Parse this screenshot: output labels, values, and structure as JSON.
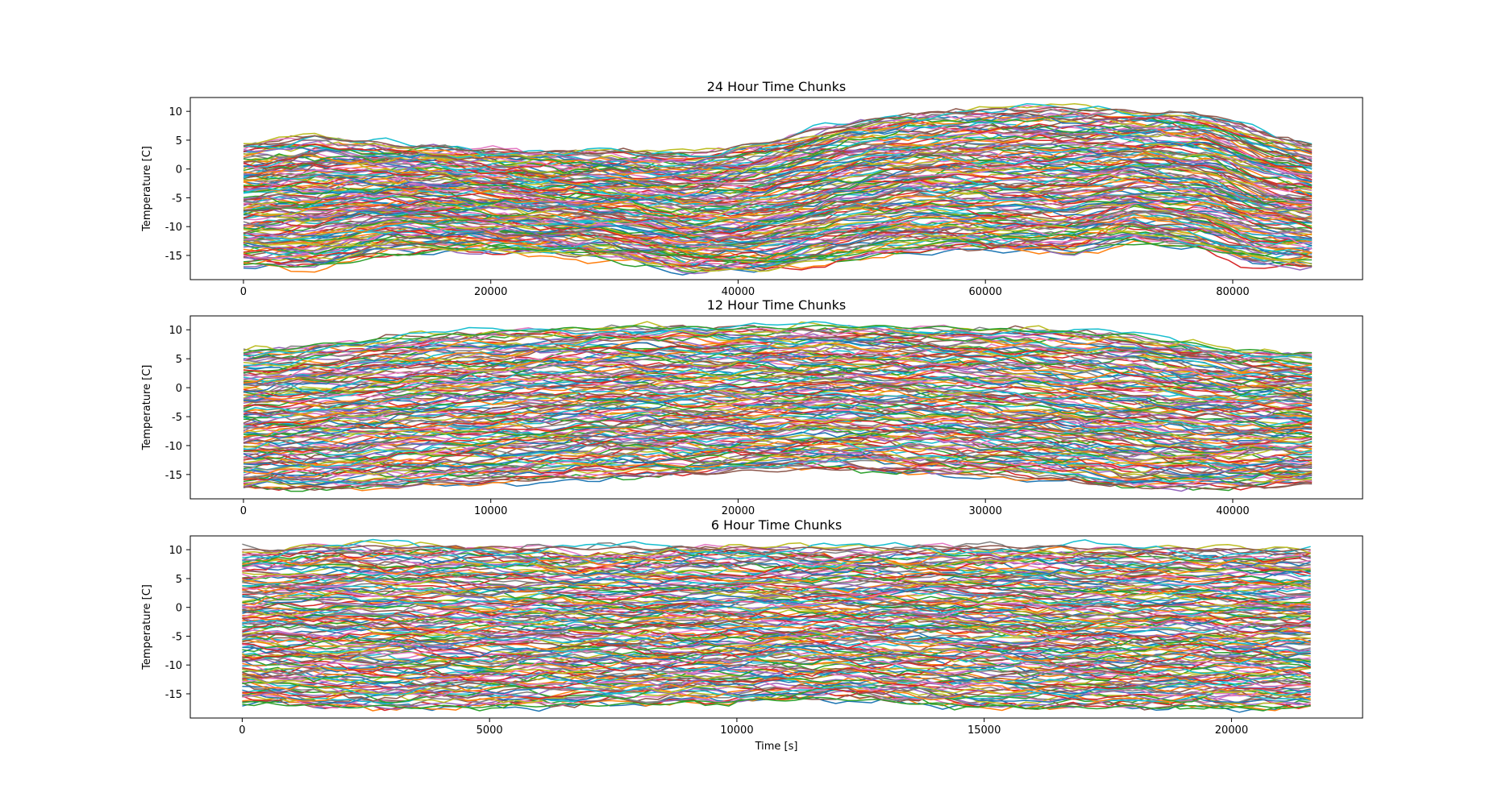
{
  "chart_data": [
    {
      "type": "line",
      "title": "24 Hour Time Chunks",
      "xlabel": "",
      "ylabel": "Temperature [C]",
      "xlim": [
        -4300,
        90500
      ],
      "ylim": [
        -19.2,
        12.4
      ],
      "x_ticks": [
        0,
        20000,
        40000,
        60000,
        80000
      ],
      "y_ticks": [
        10,
        5,
        0,
        -5,
        -10,
        -15
      ],
      "grid": false,
      "legend": "none",
      "n_series_drawn": 150,
      "x": [
        0,
        6000,
        12000,
        18000,
        24000,
        30000,
        36000,
        42000,
        48000,
        54000,
        60000,
        66000,
        72000,
        78000,
        82000,
        86400
      ],
      "envelope_upper": [
        3.9,
        5.6,
        4.2,
        3.5,
        3.0,
        2.8,
        2.5,
        4.6,
        7.6,
        9.4,
        10.3,
        10.6,
        10.1,
        9.5,
        6.5,
        4.0
      ],
      "envelope_lower": [
        -16.6,
        -16.9,
        -13.8,
        -14.0,
        -14.8,
        -15.3,
        -17.6,
        -17.8,
        -15.5,
        -13.9,
        -14.6,
        -14.8,
        -12.1,
        -14.0,
        -16.8,
        -16.8
      ],
      "series": [
        {
          "name": "",
          "values": [
            -16.6,
            -16.9,
            -15.0,
            -13.8,
            -13.9,
            -14.2,
            -15.0,
            -16.2,
            -15.0,
            -13.5,
            -12.0,
            -11.5,
            -12.5,
            -14.0,
            -15.0,
            -16.0
          ]
        },
        {
          "name": "",
          "values": [
            3.8,
            5.6,
            4.2,
            3.4,
            3.0,
            2.8,
            2.6,
            4.5,
            7.5,
            9.5,
            10.2,
            10.5,
            10.0,
            9.4,
            6.5,
            4.0
          ]
        },
        {
          "name": "",
          "values": [
            -12.8,
            -13.2,
            -13.6,
            -14.0,
            -14.5,
            -15.0,
            -17.5,
            -17.6,
            -15.2,
            -13.0,
            -10.8,
            -10.0,
            -11.0,
            -13.0,
            -15.2,
            -16.5
          ]
        }
      ],
      "colors": [
        "#1f77b4",
        "#ff7f0e",
        "#2ca02c",
        "#d62728",
        "#9467bd",
        "#8c564b",
        "#e377c2",
        "#7f7f7f",
        "#bcbd22",
        "#17becf"
      ]
    },
    {
      "type": "line",
      "title": "12 Hour Time Chunks",
      "xlabel": "",
      "ylabel": "Temperature [C]",
      "xlim": [
        -2150,
        45250
      ],
      "ylim": [
        -19.2,
        12.4
      ],
      "x_ticks": [
        0,
        10000,
        20000,
        30000,
        40000
      ],
      "y_ticks": [
        10,
        5,
        0,
        -5,
        -10,
        -15
      ],
      "grid": false,
      "legend": "none",
      "n_series_drawn": 150,
      "x": [
        0,
        4000,
        8000,
        12000,
        16000,
        20000,
        24000,
        28000,
        32000,
        36000,
        40000,
        43200
      ],
      "envelope_upper": [
        6.2,
        7.8,
        9.2,
        10.0,
        10.5,
        10.2,
        10.6,
        10.4,
        9.8,
        9.0,
        6.5,
        6.0
      ],
      "envelope_lower": [
        -17.5,
        -17.4,
        -16.5,
        -15.8,
        -15.2,
        -14.5,
        -14.0,
        -14.5,
        -15.5,
        -17.2,
        -17.3,
        -16.8
      ],
      "series": [
        {
          "name": "",
          "values": [
            6.0,
            7.8,
            9.0,
            10.0,
            10.5,
            10.2,
            10.6,
            10.4,
            9.8,
            9.0,
            6.5,
            5.8
          ]
        },
        {
          "name": "",
          "values": [
            -17.4,
            -17.2,
            -16.5,
            -15.8,
            -15.2,
            -14.5,
            -14.0,
            -14.5,
            -15.5,
            -17.2,
            -17.3,
            -16.8
          ]
        }
      ],
      "colors": [
        "#1f77b4",
        "#ff7f0e",
        "#2ca02c",
        "#d62728",
        "#9467bd",
        "#8c564b",
        "#e377c2",
        "#7f7f7f",
        "#bcbd22",
        "#17becf"
      ]
    },
    {
      "type": "line",
      "title": "6 Hour Time Chunks",
      "xlabel": "Time [s]",
      "ylabel": "Temperature [C]",
      "xlim": [
        -1050,
        22650
      ],
      "ylim": [
        -19.2,
        12.4
      ],
      "x_ticks": [
        0,
        5000,
        10000,
        15000,
        20000
      ],
      "y_ticks": [
        10,
        5,
        0,
        -5,
        -10,
        -15
      ],
      "grid": false,
      "legend": "none",
      "n_series_drawn": 160,
      "x": [
        0,
        2000,
        4000,
        6000,
        8000,
        10000,
        12000,
        14000,
        16000,
        18000,
        20000,
        21600
      ],
      "envelope_upper": [
        9.8,
        10.6,
        10.5,
        10.4,
        10.2,
        10.3,
        10.1,
        10.4,
        10.5,
        10.2,
        10.0,
        9.8
      ],
      "envelope_lower": [
        -16.5,
        -17.5,
        -17.3,
        -17.0,
        -16.8,
        -16.2,
        -15.8,
        -16.8,
        -17.4,
        -17.3,
        -17.3,
        -17.3
      ],
      "series": [
        {
          "name": "",
          "values": [
            -16.5,
            -17.2,
            -17.3,
            -17.0,
            -16.8,
            -16.2,
            -15.8,
            -16.8,
            -17.4,
            -17.3,
            -17.3,
            -17.3
          ]
        },
        {
          "name": "",
          "values": [
            9.8,
            10.5,
            10.4,
            10.3,
            10.2,
            10.3,
            10.1,
            10.4,
            10.5,
            10.2,
            10.0,
            9.8
          ]
        }
      ],
      "colors": [
        "#1f77b4",
        "#ff7f0e",
        "#2ca02c",
        "#d62728",
        "#9467bd",
        "#8c564b",
        "#e377c2",
        "#7f7f7f",
        "#bcbd22",
        "#17becf"
      ]
    }
  ]
}
